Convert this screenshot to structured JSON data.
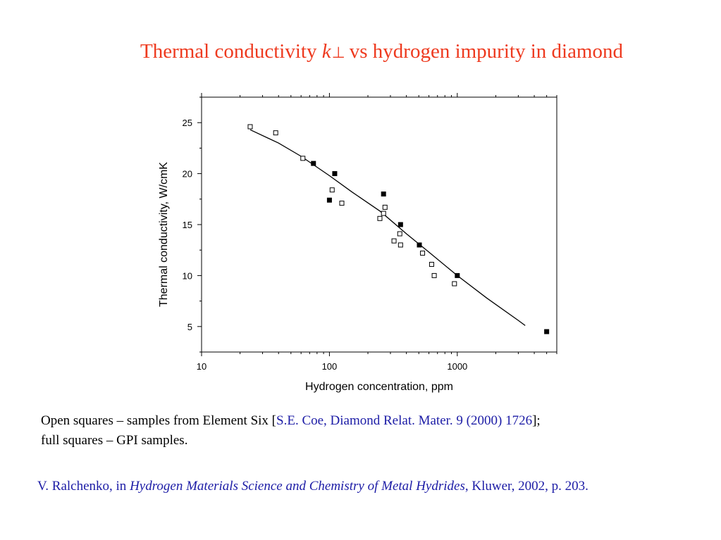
{
  "slide": {
    "title_pre": "Thermal conductivity ",
    "title_k": "k",
    "title_sub": "⊥",
    "title_post": "vs hydrogen impurity in diamond",
    "caption_line1_a": "Open squares – samples from Element Six [",
    "caption_ref": "S.E. Coe, Diamond Relat. Mater. 9 (2000) 1726",
    "caption_line1_b": "];",
    "caption_line2": "full squares – GPI samples.",
    "citation_a": "V. Ralchenko,  in ",
    "citation_book": "Hydrogen Materials Science and Chemistry of Metal Hydrides",
    "citation_b": ", Kluwer, 2002, p. 203."
  },
  "colors": {
    "title": "#ee3a1f",
    "reference": "#1c1ca6",
    "ink": "#000000"
  },
  "chart_data": {
    "type": "scatter",
    "xscale": "log",
    "xlabel": "Hydrogen concentration, ppm",
    "ylabel": "Thermal conductivity, W/cmK",
    "xlim": [
      10,
      6000
    ],
    "ylim": [
      2.5,
      27.5
    ],
    "x_ticks": [
      10,
      100,
      1000
    ],
    "y_ticks": [
      5,
      10,
      15,
      20,
      25
    ],
    "grid": false,
    "series": [
      {
        "marker": "open-square",
        "points": [
          [
            24,
            24.6
          ],
          [
            38,
            24.0
          ],
          [
            62,
            21.5
          ],
          [
            105,
            18.4
          ],
          [
            125,
            17.1
          ],
          [
            248,
            15.6
          ],
          [
            265,
            16.1
          ],
          [
            272,
            16.7
          ],
          [
            320,
            13.4
          ],
          [
            355,
            14.1
          ],
          [
            360,
            13.0
          ],
          [
            535,
            12.2
          ],
          [
            630,
            11.1
          ],
          [
            660,
            10.0
          ],
          [
            950,
            9.2
          ]
        ]
      },
      {
        "marker": "filled-square",
        "points": [
          [
            75,
            21.0
          ],
          [
            100,
            17.4
          ],
          [
            110,
            20.0
          ],
          [
            265,
            18.0
          ],
          [
            360,
            15.0
          ],
          [
            505,
            13.0
          ],
          [
            1000,
            10.0
          ],
          [
            5000,
            4.5
          ]
        ]
      }
    ],
    "fit_curve": [
      [
        24,
        24.3
      ],
      [
        40,
        23.0
      ],
      [
        60,
        21.7
      ],
      [
        100,
        19.8
      ],
      [
        150,
        18.2
      ],
      [
        250,
        16.3
      ],
      [
        400,
        14.1
      ],
      [
        600,
        12.3
      ],
      [
        1000,
        10.0
      ],
      [
        1700,
        7.8
      ],
      [
        3000,
        5.6
      ],
      [
        3400,
        5.1
      ]
    ]
  }
}
